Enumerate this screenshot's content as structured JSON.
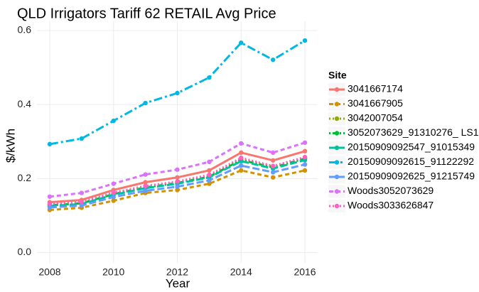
{
  "chart_data": {
    "type": "line",
    "title": "QLD Irrigators Tariff 62 RETAIL Avg Price",
    "x_label": "Year",
    "y_label": "$/kWh",
    "legend_title": "Site",
    "legend": "right",
    "grid": true,
    "x": [
      2008,
      2009,
      2010,
      2011,
      2012,
      2013,
      2014,
      2015,
      2016
    ],
    "xlim": [
      2007.6,
      2016.4
    ],
    "xticks": [
      2008,
      2010,
      2012,
      2014,
      2016
    ],
    "ylim": [
      -0.028,
      0.625
    ],
    "yticks": [
      {
        "value": 0,
        "label": "0.0"
      },
      {
        "value": 0.2,
        "label": "0.2"
      },
      {
        "value": 0.4,
        "label": "0.4"
      },
      {
        "value": 0.6,
        "label": "0.6"
      }
    ],
    "series": [
      {
        "name": "3041667174",
        "color": "#F8766D",
        "linetype": "solid",
        "values": [
          0.136,
          0.142,
          0.169,
          0.19,
          0.203,
          0.222,
          0.27,
          0.249,
          0.274
        ]
      },
      {
        "name": "3041667905",
        "color": "#D39200",
        "linetype": "dashed",
        "values": [
          0.115,
          0.121,
          0.14,
          0.161,
          0.169,
          0.186,
          0.222,
          0.203,
          0.222
        ]
      },
      {
        "name": "3042007054",
        "color": "#93AA00",
        "linetype": "dotted",
        "values": [
          0.13,
          0.135,
          0.16,
          0.178,
          0.19,
          0.207,
          0.252,
          0.232,
          0.256
        ]
      },
      {
        "name": "3052073629_91310276_ LS1",
        "color": "#00BA38",
        "linetype": "dotdash",
        "values": [
          0.128,
          0.133,
          0.158,
          0.176,
          0.188,
          0.205,
          0.25,
          0.23,
          0.254
        ]
      },
      {
        "name": "20150909092547_91015349",
        "color": "#00C19F",
        "linetype": "longdash",
        "values": [
          0.126,
          0.131,
          0.156,
          0.174,
          0.186,
          0.203,
          0.247,
          0.227,
          0.25
        ]
      },
      {
        "name": "20150909092615_91122292",
        "color": "#00B9E3",
        "linetype": "twodash",
        "values": [
          0.293,
          0.308,
          0.356,
          0.404,
          0.431,
          0.473,
          0.567,
          0.521,
          0.573
        ]
      },
      {
        "name": "20150909092625_91215749",
        "color": "#619CFF",
        "linetype": "longdash",
        "values": [
          0.122,
          0.127,
          0.15,
          0.167,
          0.178,
          0.195,
          0.235,
          0.217,
          0.238
        ]
      },
      {
        "name": "Woods3052073629",
        "color": "#DB72FB",
        "linetype": "dashed",
        "values": [
          0.151,
          0.161,
          0.186,
          0.211,
          0.224,
          0.245,
          0.295,
          0.27,
          0.297
        ]
      },
      {
        "name": "Woods3033626847",
        "color": "#FF61C3",
        "linetype": "dotted",
        "values": [
          0.132,
          0.137,
          0.162,
          0.18,
          0.192,
          0.21,
          0.256,
          0.234,
          0.258
        ]
      }
    ]
  }
}
